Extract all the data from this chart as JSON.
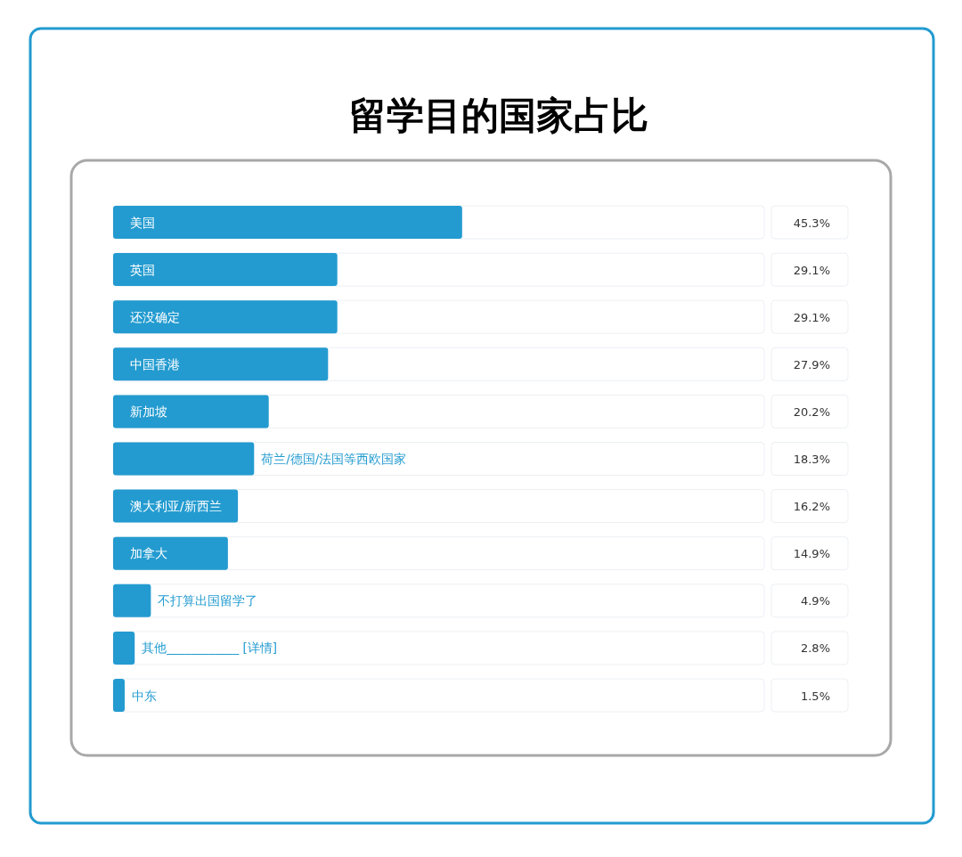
{
  "chart_data": {
    "type": "bar",
    "orientation": "horizontal",
    "title": "留学目的国家占比",
    "color": "#239bd0",
    "categories": [
      "美国",
      "英国",
      "还没确定",
      "中国香港",
      "新加坡",
      "荷兰/德国/法国等西欧国家",
      "澳大利亚/新西兰",
      "加拿大",
      "不打算出国留学了",
      "其他____________ [详情]",
      "中东"
    ],
    "values": [
      45.3,
      29.1,
      29.1,
      27.9,
      20.2,
      18.3,
      16.2,
      14.9,
      4.9,
      2.8,
      1.5
    ],
    "value_labels": [
      "45.3%",
      "29.1%",
      "29.1%",
      "27.9%",
      "20.2%",
      "18.3%",
      "16.2%",
      "14.9%",
      "4.9%",
      "2.8%",
      "1.5%"
    ]
  }
}
